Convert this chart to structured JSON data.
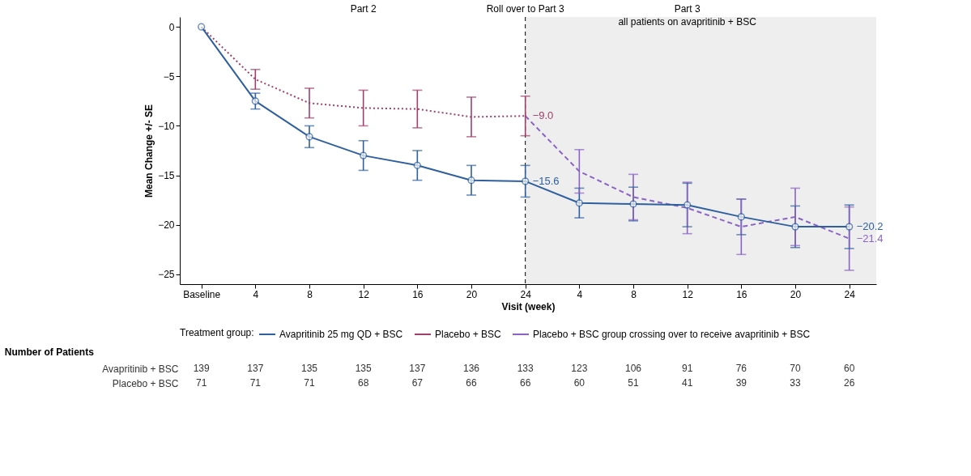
{
  "chart_data": [
    {
      "type": "line",
      "xlabel": "Visit (week)",
      "ylabel": "Mean Change +/- SE",
      "categories": [
        "Baseline",
        "4",
        "8",
        "12",
        "16",
        "20",
        "24",
        "4",
        "8",
        "12",
        "16",
        "20",
        "24"
      ],
      "ylim": [
        -26,
        1
      ],
      "yticks": [
        -25,
        -20,
        -15,
        -10,
        -5,
        0
      ],
      "legend": "bottom",
      "legend_title": "Treatment group:",
      "series": [
        {
          "name": "Avapritinib 25 mg QD + BSC",
          "color": "#2f5f9e",
          "marker": "circle",
          "line_style": "solid",
          "values": [
            0,
            -7.5,
            -11.1,
            -13.0,
            -14.0,
            -15.5,
            -15.6,
            -17.8,
            -17.9,
            -18.0,
            -19.2,
            -20.2,
            -20.2
          ],
          "errors": [
            null,
            0.8,
            1.1,
            1.5,
            1.5,
            1.5,
            1.6,
            1.5,
            1.7,
            2.2,
            1.8,
            2.1,
            2.2
          ],
          "value_labels": [
            null,
            null,
            null,
            null,
            null,
            null,
            "−15.6",
            null,
            null,
            null,
            null,
            null,
            "−20.2"
          ]
        },
        {
          "name": "Placebo + BSC",
          "color": "#a0406a",
          "marker": "none",
          "line_style": "dotted",
          "values": [
            0,
            -5.3,
            -7.7,
            -8.2,
            -8.3,
            -9.1,
            -9.0,
            null,
            null,
            null,
            null,
            null,
            null
          ],
          "errors": [
            null,
            1.0,
            1.5,
            1.8,
            1.9,
            2.0,
            2.0,
            null,
            null,
            null,
            null,
            null,
            null
          ],
          "value_labels": [
            null,
            null,
            null,
            null,
            null,
            null,
            "−9.0",
            null,
            null,
            null,
            null,
            null,
            null
          ]
        },
        {
          "name": "Placebo + BSC group crossing over to receive avapritinib + BSC",
          "color": "#8a63c4",
          "marker": "none",
          "line_style": "dashed",
          "values": [
            null,
            null,
            null,
            null,
            null,
            null,
            -9.0,
            -14.6,
            -17.2,
            -18.3,
            -20.2,
            -19.2,
            -21.4
          ],
          "errors": [
            null,
            null,
            null,
            null,
            null,
            null,
            null,
            2.2,
            2.3,
            2.6,
            2.8,
            2.9,
            3.2
          ],
          "value_labels": [
            null,
            null,
            null,
            null,
            null,
            null,
            null,
            null,
            null,
            null,
            null,
            null,
            "−21.4"
          ]
        }
      ],
      "annotations": [
        "Part 2",
        "Roll over to Part 3",
        "Part 3",
        "all patients on avapritinib + BSC"
      ]
    },
    {
      "type": "heatmap",
      "title": "Number of Patients",
      "data_labels": true,
      "categories": [
        null,
        null,
        null,
        null,
        null,
        null,
        null,
        null,
        null,
        null,
        null,
        null,
        null
      ],
      "y_categories": [
        "Avapritinib + BSC",
        "Placebo + BSC"
      ],
      "cells": [
        [
          139,
          137,
          135,
          135,
          137,
          136,
          133,
          123,
          106,
          91,
          76,
          70,
          60
        ],
        [
          71,
          71,
          71,
          68,
          67,
          66,
          66,
          60,
          51,
          41,
          39,
          33,
          26
        ]
      ]
    }
  ]
}
